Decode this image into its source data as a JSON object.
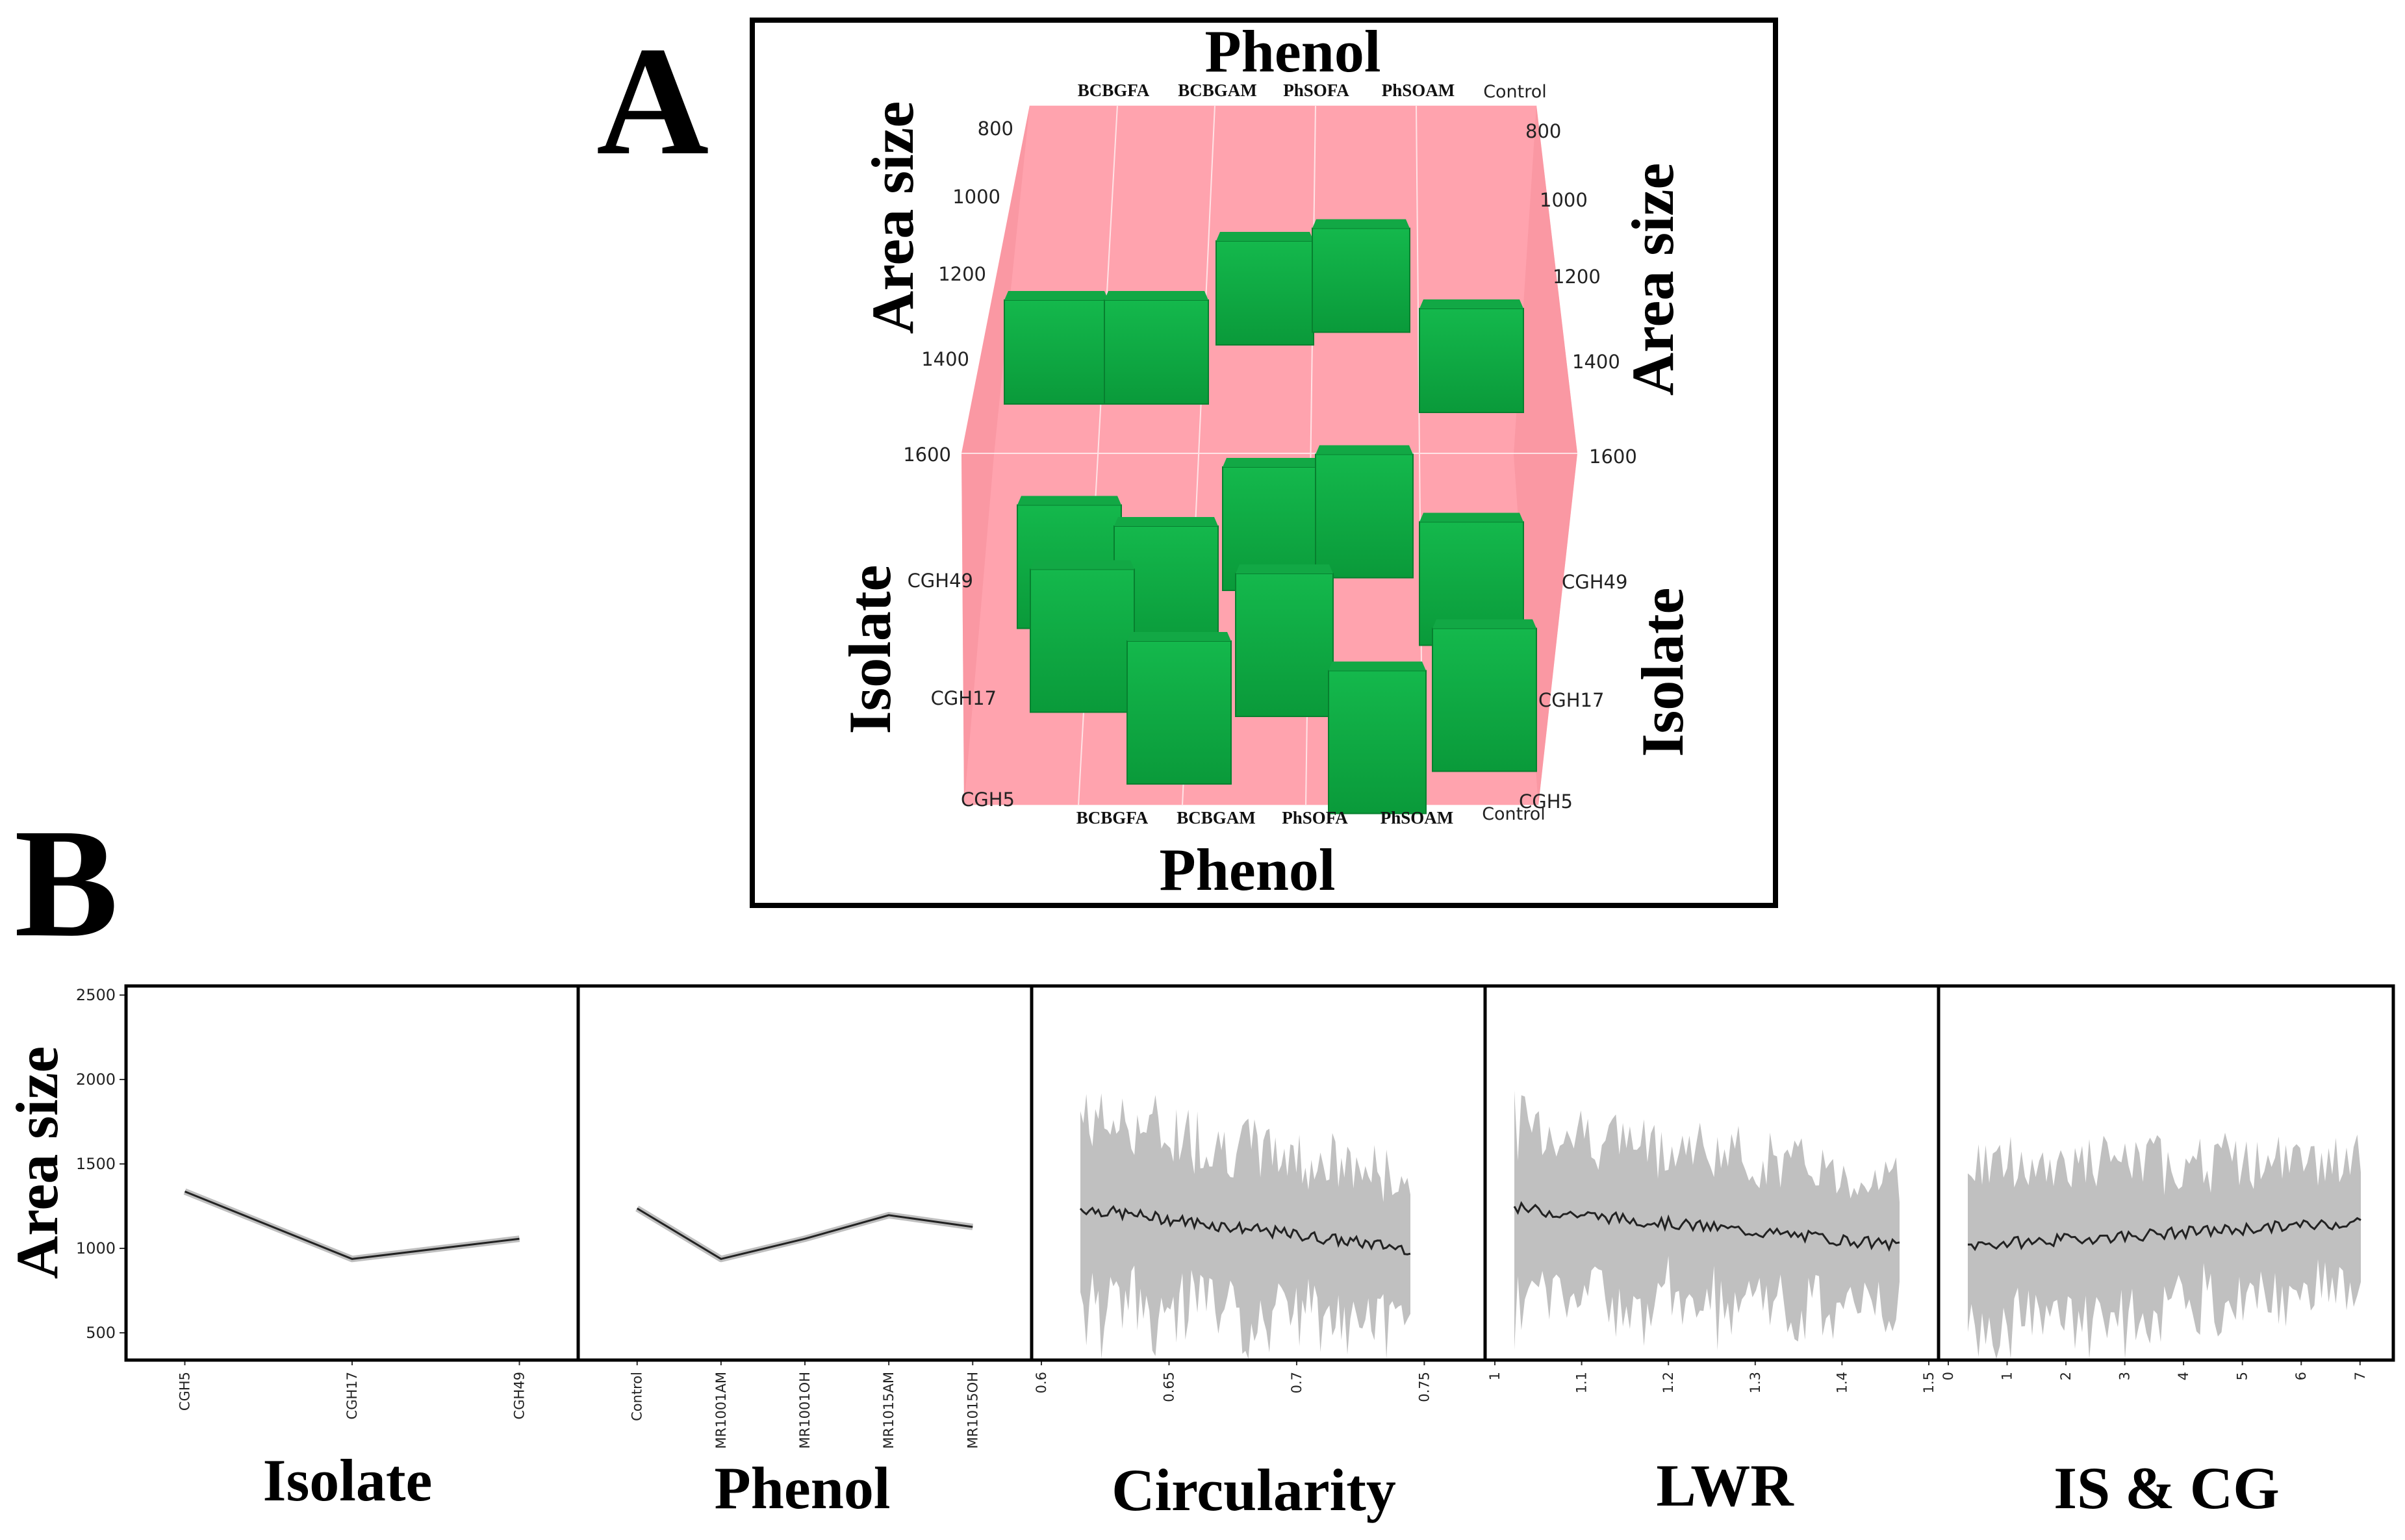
{
  "panel_labels": {
    "a": "A",
    "b": "B"
  },
  "chart_data": [
    {
      "type": "bar",
      "subtype": "3d-surface-bars",
      "panel": "A",
      "title_top": "Phenol",
      "title_bottom": "Phenol",
      "ylabel_left_top": "Area size",
      "ylabel_right_top": "Area size",
      "ylabel_left_bottom": "Isolate",
      "ylabel_right_bottom": "Isolate",
      "phenol_ticks_top": [
        "BCBGFA",
        "BCBGAM",
        "PhSOFA",
        "PhSOAM",
        "Control"
      ],
      "phenol_ticks_bottom": [
        "BCBGFA",
        "BCBGAM",
        "PhSOFA",
        "PhSOAM",
        "Control"
      ],
      "area_ticks": [
        "800",
        "1000",
        "1200",
        "1400",
        "1600"
      ],
      "isolate_ticks": [
        "CGH49",
        "CGH17",
        "CGH5"
      ],
      "ylim": [
        800,
        1600
      ],
      "categories": [
        "BCBGFA",
        "BCBGAM",
        "PhSOFA",
        "PhSOAM",
        "Control"
      ],
      "series": [
        {
          "name": "CGH49",
          "values": [
            1180,
            1180,
            1040,
            1010,
            1200
          ]
        },
        {
          "name": "CGH17",
          "values": [
            1350,
            1400,
            1260,
            1230,
            1390
          ]
        },
        {
          "name": "CGH5",
          "values": [
            1310,
            1480,
            1320,
            1550,
            1450
          ]
        }
      ]
    },
    {
      "type": "line",
      "panel": "B",
      "ylabel": "Area size",
      "yticks": [
        "2500",
        "2000",
        "1500",
        "1000",
        "500"
      ],
      "ylim": [
        330,
        2550
      ],
      "subplots": [
        {
          "name": "isolate",
          "xlabel": "Isolate",
          "xticks": [
            "CGH5",
            "CGH17",
            "CGH49"
          ],
          "values": [
            1330,
            930,
            1050
          ]
        },
        {
          "name": "phenol",
          "xlabel": "Phenol",
          "xticks": [
            "Control",
            "MR1001AM",
            "MR1001OH",
            "MR1015AM",
            "MR1015OH"
          ],
          "values": [
            1230,
            930,
            1050,
            1190,
            1120
          ]
        },
        {
          "name": "circularity",
          "xlabel": "Circularity",
          "xticks": [
            "0.6",
            "0.65",
            "0.7",
            "0.75"
          ],
          "xlim": [
            0.6,
            0.77
          ],
          "mean_start": 1230,
          "mean_end": 990,
          "band": 480
        },
        {
          "name": "lwr",
          "xlabel": "LWR",
          "xticks": [
            "1",
            "1.1",
            "1.2",
            "1.3",
            "1.4",
            "1.5"
          ],
          "xlim": [
            1.0,
            1.5
          ],
          "mean_start": 1230,
          "mean_end": 1010,
          "band": 440
        },
        {
          "name": "is-cg",
          "xlabel": "IS & CG",
          "xticks": [
            "0",
            "1",
            "2",
            "3",
            "4",
            "5",
            "6",
            "7"
          ],
          "xlim": [
            0,
            7.4
          ],
          "mean_start": 1010,
          "mean_end": 1150,
          "band": 420
        }
      ]
    }
  ]
}
